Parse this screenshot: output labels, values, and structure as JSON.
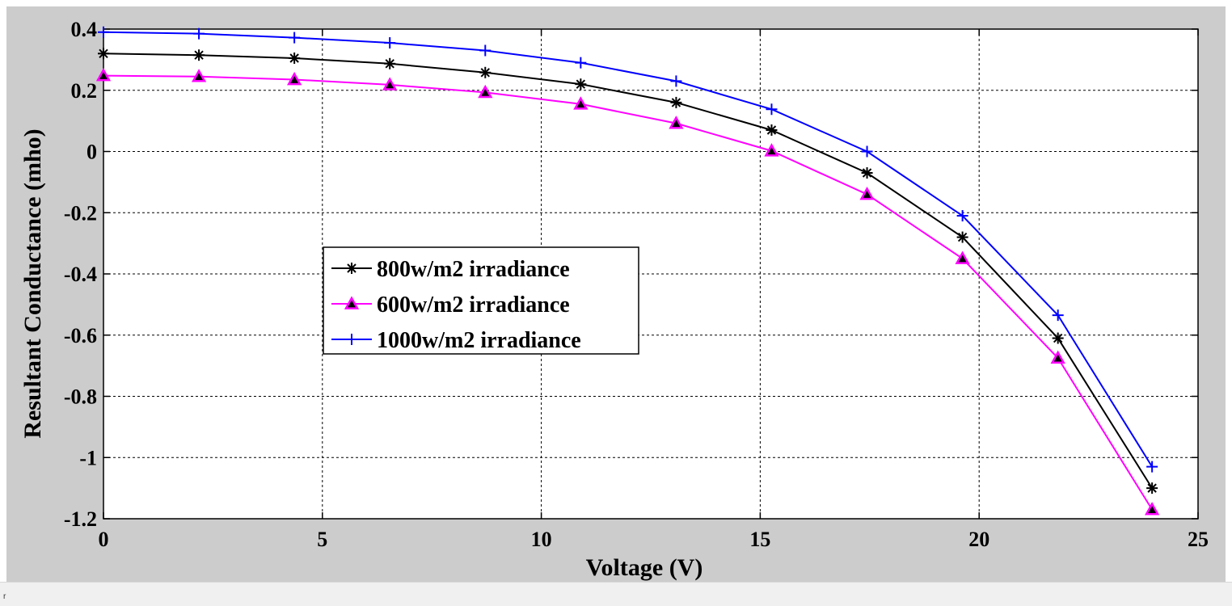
{
  "chart_data": {
    "type": "line",
    "title": "",
    "xlabel": "Voltage (V)",
    "ylabel": "Resultant Conductance (mho)",
    "xlim": [
      0,
      25
    ],
    "ylim": [
      -1.2,
      0.4
    ],
    "xticks": [
      0,
      5,
      10,
      15,
      20,
      25
    ],
    "xtick_labels": [
      "0",
      "5",
      "10",
      "15",
      "20",
      "25"
    ],
    "yticks": [
      0.4,
      0.2,
      0,
      -0.2,
      -0.4,
      -0.6,
      -0.8,
      -1,
      -1.2
    ],
    "ytick_labels": [
      "0.4",
      "0.2",
      "0",
      "-0.2",
      "-0.4",
      "-0.6",
      "-0.8",
      "-1",
      "-1.2"
    ],
    "grid": true,
    "legend_position": "center-left",
    "x": [
      0,
      2.18,
      4.36,
      6.54,
      8.72,
      10.9,
      13.08,
      15.26,
      17.44,
      19.62,
      21.8,
      23.95
    ],
    "series": [
      {
        "name": "800w/m2 irradiance",
        "color": "#000000",
        "marker": "asterisk",
        "values": [
          0.32,
          0.315,
          0.305,
          0.287,
          0.258,
          0.22,
          0.16,
          0.07,
          -0.07,
          -0.28,
          -0.61,
          -1.1
        ]
      },
      {
        "name": "600w/m2 irradiance",
        "color": "#ff00ff",
        "marker": "triangle",
        "values": [
          0.248,
          0.245,
          0.235,
          0.218,
          0.193,
          0.155,
          0.092,
          0.002,
          -0.14,
          -0.35,
          -0.675,
          -1.17
        ]
      },
      {
        "name": "1000w/m2 irradiance",
        "color": "#0000ff",
        "marker": "plus",
        "values": [
          0.39,
          0.385,
          0.372,
          0.355,
          0.33,
          0.29,
          0.23,
          0.138,
          0.0,
          -0.21,
          -0.535,
          -1.03
        ]
      }
    ]
  },
  "status": {
    "corner_mark": "r"
  }
}
